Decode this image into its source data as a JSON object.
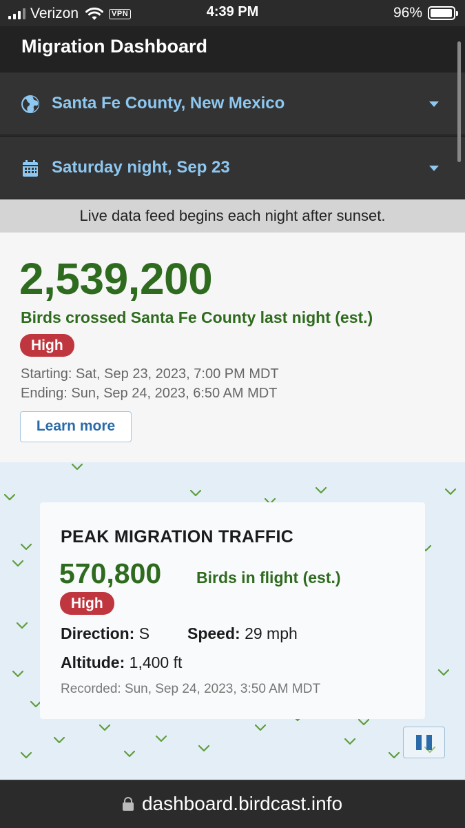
{
  "status_bar": {
    "carrier": "Verizon",
    "vpn": "VPN",
    "time": "4:39 PM",
    "battery": "96%",
    "battery_level": 0.96
  },
  "header": {
    "title": "Migration Dashboard"
  },
  "location_select": {
    "value": "Santa Fe County, New Mexico",
    "icon": "globe-icon"
  },
  "date_select": {
    "value": "Saturday night, Sep 23",
    "icon": "calendar-icon"
  },
  "notice": "Live data feed begins each night after sunset.",
  "summary": {
    "count": "2,539,200",
    "caption": "Birds crossed Santa Fe County last night (est.)",
    "badge": "High",
    "starting": "Starting: Sat, Sep 23, 2023, 7:00 PM MDT",
    "ending": "Ending: Sun, Sep 24, 2023, 6:50 AM MDT",
    "learn_more": "Learn more"
  },
  "peak": {
    "title": "PEAK MIGRATION TRAFFIC",
    "count": "570,800",
    "caption": "Birds in flight (est.)",
    "badge": "High",
    "direction_label": "Direction:",
    "direction_value": "S",
    "speed_label": "Speed:",
    "speed_value": "29 mph",
    "altitude_label": "Altitude:",
    "altitude_value": "1,400 ft",
    "recorded": "Recorded: Sun, Sep 24, 2023, 3:50 AM MDT"
  },
  "url_bar": {
    "url": "dashboard.birdcast.info"
  },
  "colors": {
    "accent_green": "#2f6b1e",
    "badge_red": "#c0363e",
    "link_blue": "#8ec7f0",
    "button_blue": "#2a6aa8"
  }
}
